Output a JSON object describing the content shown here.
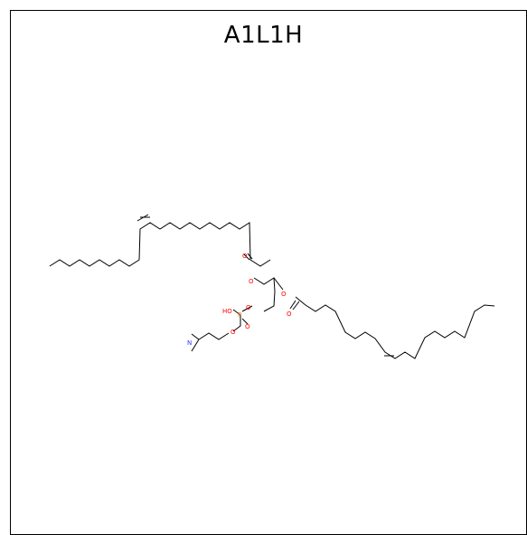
{
  "title": "A1L1H",
  "colors": {
    "carbon_bond": "#000000",
    "oxygen": "#ff0000",
    "nitrogen": "#3333ff",
    "phosphorus": "#ff8000"
  },
  "atom_labels": {
    "o_ester1": "O",
    "o_carbonyl1": "O",
    "o_ester2": "O",
    "o_carbonyl2": "O",
    "o_phosphate_link": "O",
    "o_phosphate_ethyl": "O",
    "p": "P",
    "ho": "HO",
    "o_p_double": "O",
    "n": "N"
  }
}
